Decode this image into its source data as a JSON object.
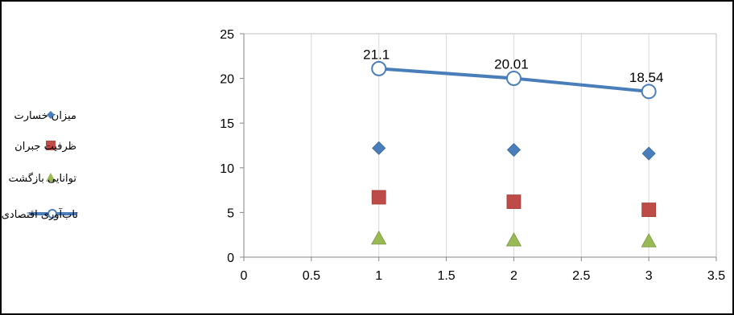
{
  "chart_data": {
    "type": "scatter",
    "xlim": [
      0,
      3.5
    ],
    "ylim": [
      0,
      25
    ],
    "x_ticks": [
      "0",
      "0.5",
      "1",
      "1.5",
      "2",
      "2.5",
      "3",
      "3.5"
    ],
    "y_ticks": [
      "0",
      "5",
      "10",
      "15",
      "20",
      "25"
    ],
    "grid": "vertical-and-horizontal-frame",
    "legend_position": "left",
    "series": [
      {
        "name": "میزان خسارت",
        "marker": "diamond",
        "color": "#4a7ebb",
        "x": [
          1,
          2,
          3
        ],
        "y": [
          12.2,
          12.0,
          11.6
        ]
      },
      {
        "name": "ظرفیت جبران",
        "marker": "square",
        "color": "#be4b48",
        "x": [
          1,
          2,
          3
        ],
        "y": [
          6.7,
          6.2,
          5.3
        ]
      },
      {
        "name": "توانایی بازگشت",
        "marker": "triangle",
        "color": "#98b954",
        "x": [
          1,
          2,
          3
        ],
        "y": [
          2.1,
          1.9,
          1.8
        ]
      },
      {
        "name": "تاب‌آوری اقتصادی",
        "marker": "circle-line",
        "color": "#4a7ebb",
        "x": [
          1,
          2,
          3
        ],
        "y": [
          21.1,
          20.01,
          18.54
        ],
        "labels": [
          "21.1",
          "20.01",
          "18.54"
        ]
      }
    ]
  }
}
